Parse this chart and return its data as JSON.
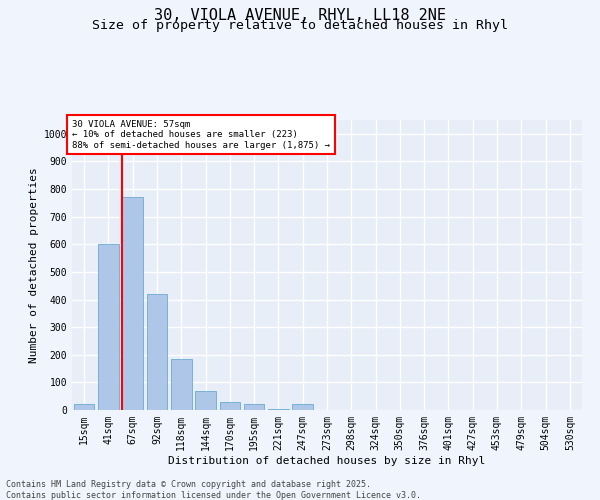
{
  "title_line1": "30, VIOLA AVENUE, RHYL, LL18 2NE",
  "title_line2": "Size of property relative to detached houses in Rhyl",
  "xlabel": "Distribution of detached houses by size in Rhyl",
  "ylabel": "Number of detached properties",
  "categories": [
    "15sqm",
    "41sqm",
    "67sqm",
    "92sqm",
    "118sqm",
    "144sqm",
    "170sqm",
    "195sqm",
    "221sqm",
    "247sqm",
    "273sqm",
    "298sqm",
    "324sqm",
    "350sqm",
    "376sqm",
    "401sqm",
    "427sqm",
    "453sqm",
    "479sqm",
    "504sqm",
    "530sqm"
  ],
  "values": [
    20,
    600,
    770,
    420,
    185,
    70,
    30,
    20,
    5,
    20,
    0,
    0,
    0,
    0,
    0,
    0,
    0,
    0,
    0,
    0,
    0
  ],
  "bar_color": "#aec6e8",
  "bar_edge_color": "#6aaad4",
  "ylim": [
    0,
    1050
  ],
  "yticks": [
    0,
    100,
    200,
    300,
    400,
    500,
    600,
    700,
    800,
    900,
    1000
  ],
  "annotation_text": "30 VIOLA AVENUE: 57sqm\n← 10% of detached houses are smaller (223)\n88% of semi-detached houses are larger (1,875) →",
  "footer_line1": "Contains HM Land Registry data © Crown copyright and database right 2025.",
  "footer_line2": "Contains public sector information licensed under the Open Government Licence v3.0.",
  "bg_color": "#e8eef8",
  "grid_color": "#ffffff",
  "fig_bg_color": "#f0f4fc",
  "title_fontsize": 11,
  "subtitle_fontsize": 9.5,
  "tick_fontsize": 7,
  "label_fontsize": 8,
  "footer_fontsize": 6,
  "red_line_x": 1.57
}
